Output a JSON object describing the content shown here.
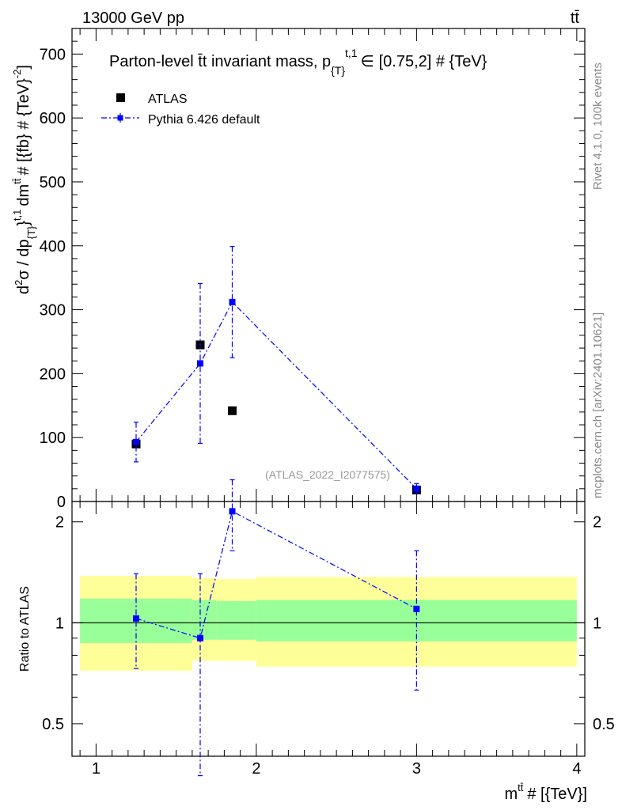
{
  "header": {
    "energy_label": "13000 GeV pp",
    "process_label": "tt̄"
  },
  "side_labels": {
    "rivet": "Rivet 4.1.0,  100k events",
    "site": "mcplots.cern.ch [arXiv:2401.10621]"
  },
  "chart_data": [
    {
      "type": "scatter",
      "panel": "main",
      "title": "Parton-level t̄t invariant mass, p_{T}^{t,1} ∈ [0.75,2] # {TeV}",
      "title_parts": {
        "main": "Parton-level t̄t invariant mass, p",
        "sub": "{T}",
        "sup": "t,1",
        "tail": "∈ [0.75,2] # {TeV}"
      },
      "ylabel": "d²σ / dp_{T}^{t,1} dm^{tt̄} # [{fb} # {TeV}^{-2}]",
      "ylabel_parts": {
        "a": "d",
        "a_sup": "2",
        "b": "σ / dp",
        "b_sub": "{T}",
        "c": "}",
        "c_sup": "t,1",
        "d": "dm",
        "d_sup": "tt̄",
        "e": "# [{fb} # {TeV}",
        "e_sup": "-2",
        "f": "]"
      },
      "xlim": [
        0.85,
        4.05
      ],
      "ylim": [
        0,
        740
      ],
      "yticks": [
        0,
        100,
        200,
        300,
        400,
        500,
        600,
        700
      ],
      "watermark": "(ATLAS_2022_I2077575)",
      "legend": [
        "ATLAS",
        "Pythia 6.426 default"
      ],
      "series": [
        {
          "name": "ATLAS",
          "color": "#000000",
          "x": [
            1.25,
            1.65,
            1.85,
            3.0
          ],
          "y": [
            90,
            245,
            142,
            18
          ]
        },
        {
          "name": "Pythia 6.426 default",
          "color": "#0000ff",
          "x": [
            1.25,
            1.65,
            1.85,
            3.0
          ],
          "y": [
            93,
            216,
            312,
            20
          ],
          "err_low": [
            31,
            125,
            87,
            8
          ],
          "err_high": [
            31,
            125,
            87,
            8
          ]
        }
      ]
    },
    {
      "type": "line",
      "panel": "ratio",
      "ylabel": "Ratio to ATLAS",
      "xlabel": "m^{tt̄} # [{TeV}]",
      "xlabel_parts": {
        "a": "m",
        "a_sup": "tt̄",
        "b": "# [{TeV}]"
      },
      "xlim": [
        0.85,
        4.05
      ],
      "ylim": [
        0.4,
        2.3
      ],
      "yticks_left": [
        "0.5",
        "1",
        "2"
      ],
      "yticks_values": [
        0.5,
        1,
        2
      ],
      "xticks": [
        "1",
        "2",
        "3",
        "4"
      ],
      "xticks_values": [
        1,
        2,
        3,
        4
      ],
      "bands": [
        {
          "x0": 0.9,
          "x1": 1.6,
          "green": [
            0.87,
            1.18
          ],
          "yellow": [
            0.72,
            1.38
          ]
        },
        {
          "x0": 1.6,
          "x1": 1.75,
          "green": [
            0.89,
            1.17
          ],
          "yellow": [
            0.77,
            1.36
          ]
        },
        {
          "x0": 1.75,
          "x1": 2.0,
          "green": [
            0.89,
            1.16
          ],
          "yellow": [
            0.77,
            1.35
          ]
        },
        {
          "x0": 2.0,
          "x1": 4.0,
          "green": [
            0.88,
            1.17
          ],
          "yellow": [
            0.74,
            1.37
          ]
        }
      ],
      "band_colors": {
        "green": "#99ff99",
        "yellow": "#ffff99"
      },
      "series": [
        {
          "name": "Pythia 6.426 default",
          "color": "#0000ff",
          "x": [
            1.25,
            1.65,
            1.85,
            3.0
          ],
          "y": [
            1.03,
            0.9,
            2.15,
            1.1
          ],
          "err_low": [
            0.3,
            0.55,
            0.51,
            0.47
          ],
          "err_high": [
            0.37,
            0.5,
            0.52,
            0.54
          ]
        }
      ]
    }
  ]
}
